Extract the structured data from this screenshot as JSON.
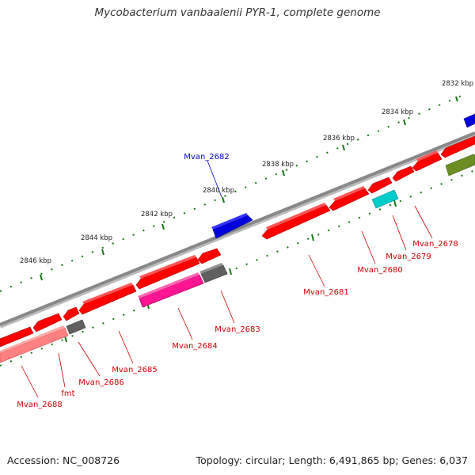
{
  "title": "Mycobacterium vanbaalenii PYR-1, complete genome",
  "footer": {
    "accession": "Accession: NC_008726",
    "summary": "Topology: circular; Length: 6,491,865 bp; Genes: 6,037"
  },
  "scale": {
    "ticks": [
      {
        "label": "2832 kbp"
      },
      {
        "label": "2834 kbp"
      },
      {
        "label": "2836 kbp"
      },
      {
        "label": "2838 kbp"
      },
      {
        "label": "2840 kbp"
      },
      {
        "label": "2842 kbp"
      },
      {
        "label": "2844 kbp"
      },
      {
        "label": "2846 kbp"
      }
    ]
  },
  "genes": [
    {
      "label": "Mvan_2682",
      "strand": "+",
      "color": "#0000dd"
    },
    {
      "label": "Mvan_2681",
      "strand": "-",
      "color": "#ff0000"
    },
    {
      "label": "Mvan_2680",
      "strand": "-",
      "color": "#ff0000"
    },
    {
      "label": "Mvan_2679",
      "strand": "-",
      "color": "#00cccc"
    },
    {
      "label": "Mvan_2678",
      "strand": "-",
      "color": "#6b8e23"
    },
    {
      "label": "Mvan_2683",
      "strand": "-",
      "color": "#606060"
    },
    {
      "label": "Mvan_2684",
      "strand": "-",
      "color": "#ff1493"
    },
    {
      "label": "Mvan_2685",
      "strand": "-",
      "color": "#ff0000"
    },
    {
      "label": "Mvan_2686",
      "strand": "-",
      "color": "#606060"
    },
    {
      "label": "fmt",
      "strand": "-",
      "color": "#ff0000"
    },
    {
      "label": "Mvan_2688",
      "strand": "-",
      "color": "#ff8080"
    }
  ],
  "colors": {
    "backbone": "#888888",
    "tick": "#117711",
    "forward_label": "#0000cc",
    "reverse_label": "#cc0000"
  }
}
